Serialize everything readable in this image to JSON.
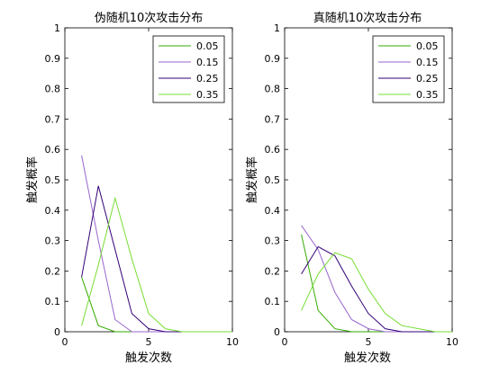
{
  "chart_data": [
    {
      "type": "line",
      "title": "伪随机10次攻击分布",
      "xlabel": "触发次数",
      "ylabel": "触发概率",
      "xlim": [
        0,
        10
      ],
      "ylim": [
        0,
        1
      ],
      "xticks": [
        0,
        5,
        10
      ],
      "yticks": [
        0,
        0.1,
        0.2,
        0.3,
        0.4,
        0.5,
        0.6,
        0.7,
        0.8,
        0.9,
        1
      ],
      "grid": false,
      "legend_position": "top-right",
      "series": [
        {
          "name": "0.05",
          "color": "#33aa00",
          "x": [
            1,
            2,
            3,
            4,
            5,
            6,
            7,
            8,
            9,
            10
          ],
          "y": [
            0.18,
            0.02,
            0,
            0,
            0,
            0,
            0,
            0,
            0,
            0
          ]
        },
        {
          "name": "0.15",
          "color": "#9966cc",
          "x": [
            1,
            2,
            3,
            4,
            5,
            6,
            7,
            8,
            9,
            10
          ],
          "y": [
            0.58,
            0.3,
            0.04,
            0,
            0,
            0,
            0,
            0,
            0,
            0
          ]
        },
        {
          "name": "0.25",
          "color": "#330077",
          "x": [
            1,
            2,
            3,
            4,
            5,
            6,
            7,
            8,
            9,
            10
          ],
          "y": [
            0.18,
            0.48,
            0.27,
            0.06,
            0.01,
            0,
            0,
            0,
            0,
            0
          ]
        },
        {
          "name": "0.35",
          "color": "#77dd33",
          "x": [
            1,
            2,
            3,
            4,
            5,
            6,
            7,
            8,
            9,
            10
          ],
          "y": [
            0.02,
            0.22,
            0.44,
            0.24,
            0.06,
            0.01,
            0,
            0,
            0,
            0
          ]
        }
      ]
    },
    {
      "type": "line",
      "title": "真随机10次攻击分布",
      "xlabel": "触发次数",
      "ylabel": "触发概率",
      "xlim": [
        0,
        10
      ],
      "ylim": [
        0,
        1
      ],
      "xticks": [
        0,
        5,
        10
      ],
      "yticks": [
        0,
        0.1,
        0.2,
        0.3,
        0.4,
        0.5,
        0.6,
        0.7,
        0.8,
        0.9,
        1
      ],
      "grid": false,
      "legend_position": "top-right",
      "series": [
        {
          "name": "0.05",
          "color": "#33aa00",
          "x": [
            1,
            2,
            3,
            4,
            5,
            6,
            7,
            8,
            9,
            10
          ],
          "y": [
            0.32,
            0.07,
            0.01,
            0,
            0,
            0,
            0,
            0,
            0,
            0
          ]
        },
        {
          "name": "0.15",
          "color": "#9966cc",
          "x": [
            1,
            2,
            3,
            4,
            5,
            6,
            7,
            8,
            9,
            10
          ],
          "y": [
            0.35,
            0.27,
            0.13,
            0.04,
            0.01,
            0,
            0,
            0,
            0,
            0
          ]
        },
        {
          "name": "0.25",
          "color": "#330077",
          "x": [
            1,
            2,
            3,
            4,
            5,
            6,
            7,
            8,
            9,
            10
          ],
          "y": [
            0.19,
            0.28,
            0.25,
            0.15,
            0.06,
            0.01,
            0,
            0,
            0,
            0
          ]
        },
        {
          "name": "0.35",
          "color": "#77dd33",
          "x": [
            1,
            2,
            3,
            4,
            5,
            6,
            7,
            8,
            9,
            10
          ],
          "y": [
            0.07,
            0.19,
            0.26,
            0.24,
            0.14,
            0.06,
            0.02,
            0.01,
            0,
            0
          ]
        }
      ]
    }
  ]
}
